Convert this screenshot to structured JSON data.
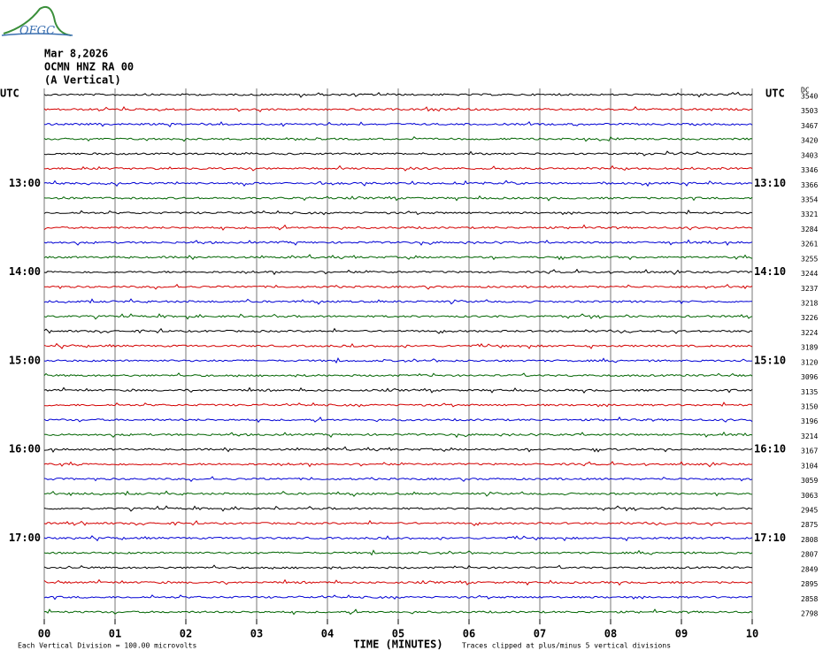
{
  "header": {
    "logo": "OFGC",
    "date": "Mar 8,2026",
    "station": "OCMN HNZ RA 00",
    "component": "(A Vertical)"
  },
  "axes": {
    "left_title": "UTC",
    "right_title": "UTC",
    "dc_label": "DC",
    "left_times": [
      "13:00",
      "14:00",
      "15:00",
      "16:00",
      "17:00"
    ],
    "right_times": [
      "13:10",
      "14:10",
      "15:10",
      "16:10",
      "17:10"
    ],
    "x_ticks": [
      "00",
      "01",
      "02",
      "03",
      "04",
      "05",
      "06",
      "07",
      "08",
      "09",
      "10"
    ],
    "x_title": "TIME (MINUTES)"
  },
  "traces": {
    "colors": [
      "#000000",
      "#d40000",
      "#0000d4",
      "#006400"
    ],
    "dc": [
      "3540",
      "3503",
      "3467",
      "3420",
      "3403",
      "3346",
      "3366",
      "3354",
      "3321",
      "3284",
      "3261",
      "3255",
      "3244",
      "3237",
      "3218",
      "3226",
      "3224",
      "3189",
      "3120",
      "3096",
      "3135",
      "3150",
      "3196",
      "3214",
      "3167",
      "3104",
      "3059",
      "3063",
      "2945",
      "2875",
      "2808",
      "2807",
      "2849",
      "2895",
      "2858",
      "2798"
    ]
  },
  "footer": {
    "scale": "Each Vertical Division =  100.00 microvolts",
    "clip": "Traces clipped at plus/minus 5 vertical divisions"
  }
}
